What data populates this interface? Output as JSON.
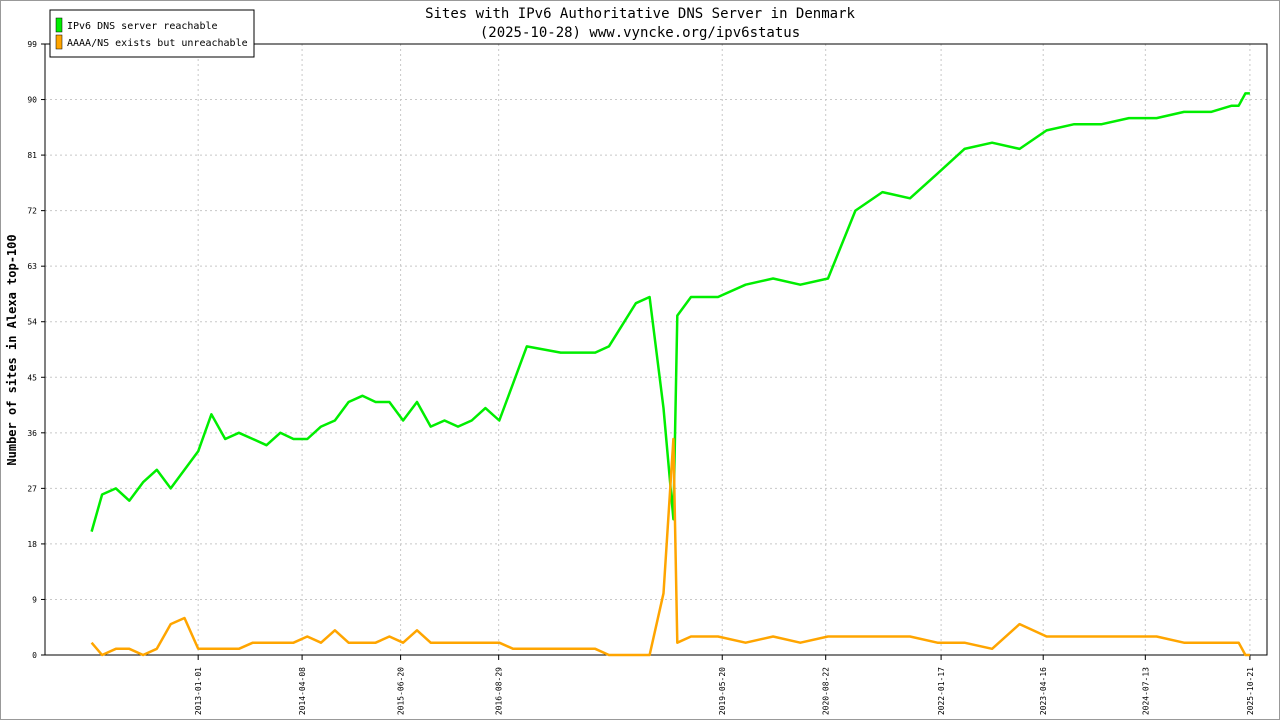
{
  "chart_data": {
    "type": "line",
    "title": "Sites with IPv6 Authoritative DNS Server in Denmark",
    "subtitle": "(2025-10-28) www.vyncke.org/ipv6status",
    "y_label": "Number of sites in Alexa top-100",
    "x": [
      "2011-09-15",
      "2011-11-01",
      "2012-01-01",
      "2012-03-01",
      "2012-05-01",
      "2012-07-01",
      "2012-09-01",
      "2012-11-01",
      "2013-01-01",
      "2013-03-01",
      "2013-05-01",
      "2013-07-01",
      "2013-09-01",
      "2013-11-01",
      "2014-01-01",
      "2014-03-01",
      "2014-05-01",
      "2014-07-01",
      "2014-09-01",
      "2014-11-01",
      "2015-01-01",
      "2015-03-01",
      "2015-05-01",
      "2015-07-01",
      "2015-09-01",
      "2015-11-01",
      "2016-01-01",
      "2016-03-01",
      "2016-05-01",
      "2016-07-01",
      "2016-09-01",
      "2016-11-01",
      "2017-01-01",
      "2017-06-01",
      "2017-11-01",
      "2018-01-01",
      "2018-05-01",
      "2018-07-01",
      "2018-09-01",
      "2018-10-15",
      "2018-11-01",
      "2019-01-01",
      "2019-05-01",
      "2019-09-01",
      "2020-01-01",
      "2020-05-01",
      "2020-09-01",
      "2021-01-01",
      "2021-05-01",
      "2021-09-01",
      "2022-01-01",
      "2022-05-01",
      "2022-09-01",
      "2023-01-01",
      "2023-05-01",
      "2023-09-01",
      "2024-01-01",
      "2024-05-01",
      "2024-09-01",
      "2025-01-01",
      "2025-05-01",
      "2025-08-01",
      "2025-09-01",
      "2025-10-01",
      "2025-10-21"
    ],
    "series": [
      {
        "name": "IPv6 DNS server reachable",
        "color": "#00ee00",
        "values": [
          20,
          26,
          27,
          25,
          28,
          30,
          27,
          30,
          33,
          39,
          35,
          36,
          35,
          34,
          36,
          35,
          35,
          37,
          38,
          41,
          42,
          41,
          41,
          38,
          41,
          37,
          38,
          37,
          38,
          40,
          38,
          44,
          50,
          49,
          49,
          50,
          57,
          58,
          40,
          22,
          55,
          58,
          58,
          60,
          61,
          60,
          61,
          72,
          75,
          74,
          78,
          82,
          83,
          82,
          85,
          86,
          86,
          87,
          87,
          88,
          88,
          89,
          89,
          91,
          91
        ]
      },
      {
        "name": "AAAA/NS exists but unreachable",
        "color": "#ffa500",
        "values": [
          2,
          0,
          1,
          1,
          0,
          1,
          5,
          6,
          1,
          1,
          1,
          1,
          2,
          2,
          2,
          2,
          3,
          2,
          4,
          2,
          2,
          2,
          3,
          2,
          4,
          2,
          2,
          2,
          2,
          2,
          2,
          1,
          1,
          1,
          1,
          0,
          0,
          0,
          10,
          35,
          2,
          3,
          3,
          2,
          3,
          2,
          3,
          3,
          3,
          3,
          2,
          2,
          1,
          5,
          3,
          3,
          3,
          3,
          3,
          2,
          2,
          2,
          2,
          0,
          0
        ]
      }
    ],
    "xlim": [
      "2011-02-20",
      "2026-01-05"
    ],
    "xticks": [
      "2013-01-01",
      "2014-04-08",
      "2015-06-20",
      "2016-08-29",
      "2019-05-20",
      "2020-08-22",
      "2022-01-17",
      "2023-04-16",
      "2024-07-13",
      "2025-10-21"
    ],
    "ylim": [
      0,
      99
    ],
    "yticks": [
      0,
      9,
      18,
      27,
      36,
      45,
      54,
      63,
      72,
      81,
      90,
      99
    ],
    "grid": true,
    "legend": "top-left"
  }
}
